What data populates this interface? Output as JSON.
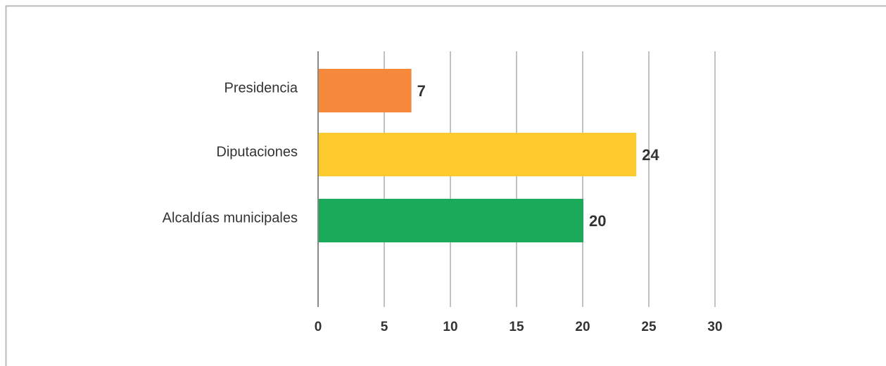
{
  "chart_data": {
    "type": "hbar",
    "categories": [
      "Presidencia",
      "Diputaciones",
      "Alcaldías municipales"
    ],
    "values": [
      7,
      24,
      20
    ],
    "colors": [
      "#f5883a",
      "#fdca2e",
      "#1aaa5a"
    ],
    "xlim": [
      0,
      30
    ],
    "xticks": [
      0,
      5,
      10,
      15,
      20,
      25,
      30
    ],
    "grid": true
  }
}
